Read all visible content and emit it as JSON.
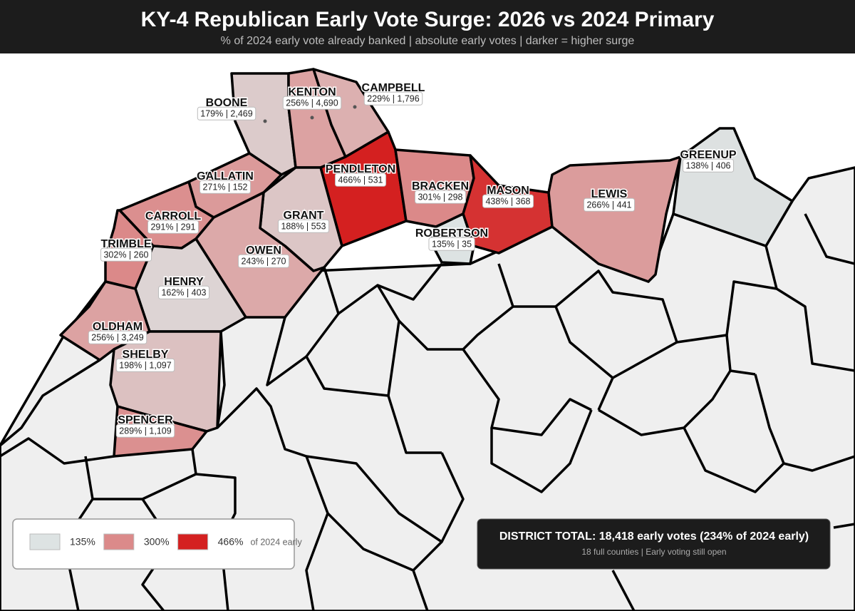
{
  "header": {
    "title": "KY-4 Republican Early Vote Surge: 2026 vs 2024 Primary",
    "subtitle": "% of 2024 early vote already banked | absolute early votes | darker = higher surge"
  },
  "counties": [
    {
      "name": "BOONE",
      "pct": 179,
      "label": "179% | 2,469"
    },
    {
      "name": "KENTON",
      "pct": 256,
      "label": "256% | 4,690"
    },
    {
      "name": "CAMPBELL",
      "pct": 229,
      "label": "229% | 1,796"
    },
    {
      "name": "PENDLETON",
      "pct": 466,
      "label": "466% | 531"
    },
    {
      "name": "BRACKEN",
      "pct": 301,
      "label": "301% | 298"
    },
    {
      "name": "MASON",
      "pct": 438,
      "label": "438% | 368"
    },
    {
      "name": "ROBERTSON",
      "pct": 135,
      "label": "135% | 35"
    },
    {
      "name": "LEWIS",
      "pct": 266,
      "label": "266% | 441"
    },
    {
      "name": "GREENUP",
      "pct": 138,
      "label": "138% | 406"
    },
    {
      "name": "GRANT",
      "pct": 188,
      "label": "188% | 553"
    },
    {
      "name": "GALLATIN",
      "pct": 271,
      "label": "271% | 152"
    },
    {
      "name": "CARROLL",
      "pct": 291,
      "label": "291% | 291"
    },
    {
      "name": "OWEN",
      "pct": 243,
      "label": "243% | 270"
    },
    {
      "name": "TRIMBLE",
      "pct": 302,
      "label": "302% | 260"
    },
    {
      "name": "HENRY",
      "pct": 162,
      "label": "162% | 403"
    },
    {
      "name": "OLDHAM",
      "pct": 256,
      "label": "256% | 3,249"
    },
    {
      "name": "SHELBY",
      "pct": 198,
      "label": "198% | 1,097"
    },
    {
      "name": "SPENCER",
      "pct": 289,
      "label": "289% | 1,109"
    }
  ],
  "legend": {
    "items": [
      {
        "value": 135,
        "label": "135%",
        "color": "#dde3e3"
      },
      {
        "value": 300,
        "label": "300%",
        "color": "#db8a8a"
      },
      {
        "value": 466,
        "label": "466%",
        "color": "#d42020"
      }
    ],
    "suffix": "of 2024 early"
  },
  "summary": {
    "title": "DISTRICT TOTAL: 18,418 early votes (234% of 2024 early)",
    "note": "18 full counties | Early voting still open"
  }
}
